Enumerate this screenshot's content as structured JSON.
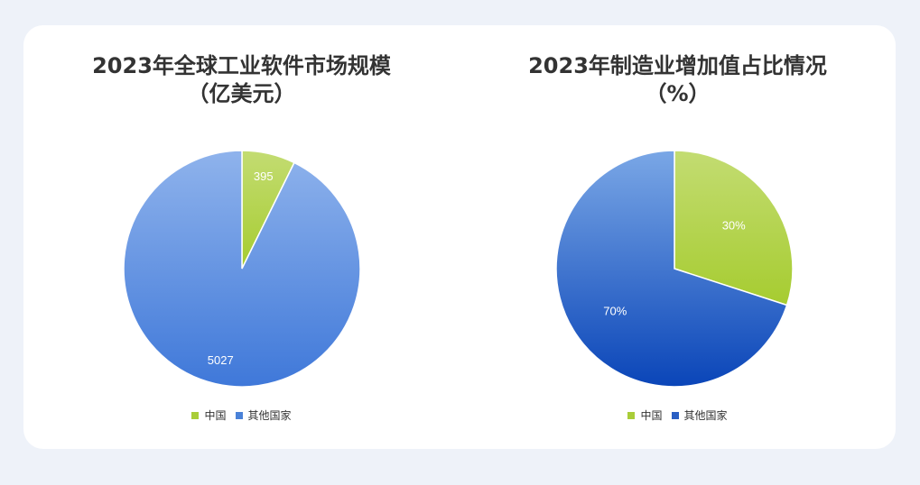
{
  "colors": {
    "china_light": "#c3dc72",
    "china_dark": "#a6cc30",
    "left_other_light": "#8fb3ec",
    "left_other_dark": "#3f78d9",
    "right_other_light": "#7aa7e6",
    "right_other_dark": "#0a45b8",
    "china_legend": "#a9cd38",
    "other_legend": "#4a82d8"
  },
  "chart_data": [
    {
      "type": "pie",
      "title_lines": [
        "2023年全球工业软件市场规模",
        "（亿美元）"
      ],
      "categories": [
        "中国",
        "其他国家"
      ],
      "values": [
        395,
        5027
      ],
      "data_labels": [
        "395",
        "5027"
      ],
      "legend": [
        "中国",
        "其他国家"
      ],
      "legend_position": "bottom"
    },
    {
      "type": "pie",
      "title_lines": [
        "2023年制造业增加值占比情况",
        "（%）"
      ],
      "categories": [
        "中国",
        "其他国家"
      ],
      "values": [
        30,
        70
      ],
      "data_labels": [
        "30%",
        "70%"
      ],
      "legend": [
        "中国",
        "其他国家"
      ],
      "legend_position": "bottom"
    }
  ]
}
